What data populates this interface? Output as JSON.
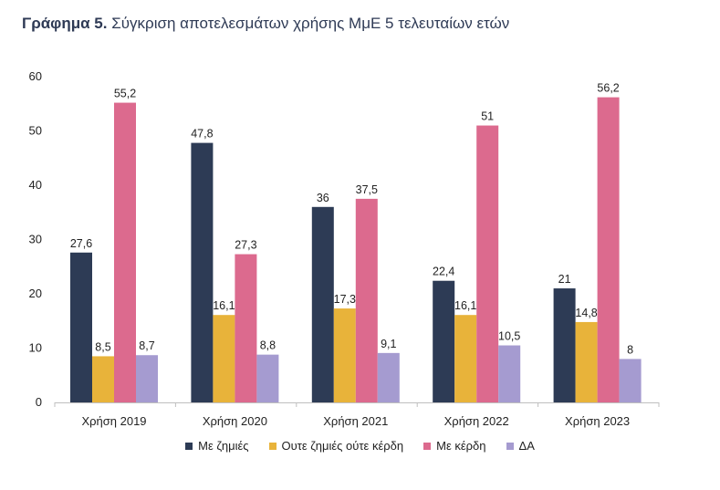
{
  "title": {
    "lead": "Γράφημα 5.",
    "text": "Σύγκριση αποτελεσμάτων χρήσης ΜμΕ 5 τελευταίων ετών"
  },
  "chart_data": {
    "type": "bar",
    "categories": [
      "Χρήση 2019",
      "Χρήση 2020",
      "Χρήση 2021",
      "Χρήση 2022",
      "Χρήση 2023"
    ],
    "series": [
      {
        "name": "Με ζημιές",
        "color": "#2d3b55",
        "values": [
          27.6,
          47.8,
          36,
          22.4,
          21
        ],
        "labels": [
          "27,6",
          "47,8",
          "36",
          "22,4",
          "21"
        ]
      },
      {
        "name": "Ουτε ζημιές ούτε κέρδη",
        "color": "#e8b33a",
        "values": [
          8.5,
          16.1,
          17.3,
          16.1,
          14.8
        ],
        "labels": [
          "8,5",
          "16,1",
          "17,3",
          "16,1",
          "14,8"
        ]
      },
      {
        "name": "Με κέρδη",
        "color": "#dc6a8e",
        "values": [
          55.2,
          27.3,
          37.5,
          51,
          56.2
        ],
        "labels": [
          "55,2",
          "27,3",
          "37,5",
          "51",
          "56,2"
        ]
      },
      {
        "name": "ΔΑ",
        "color": "#a59bd0",
        "values": [
          8.7,
          8.8,
          9.1,
          10.5,
          8
        ],
        "labels": [
          "8,7",
          "8,8",
          "9,1",
          "10,5",
          "8"
        ]
      }
    ],
    "ylim": [
      0,
      60
    ],
    "yticks": [
      0,
      10,
      20,
      30,
      40,
      50,
      60
    ],
    "grid": false,
    "legend_position": "bottom"
  }
}
